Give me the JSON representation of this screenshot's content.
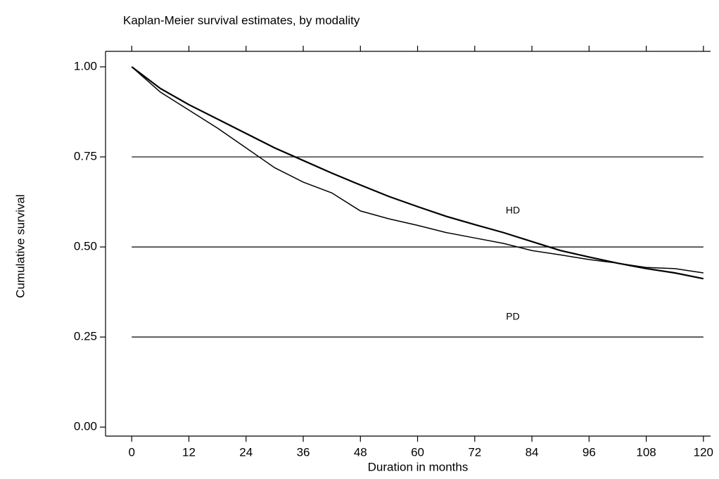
{
  "chart_data": {
    "type": "line",
    "title": "Kaplan-Meier survival estimates, by modality",
    "x_label": "Duration in months",
    "y_label": "Cumulative survival",
    "x": [
      0,
      6,
      12,
      18,
      24,
      30,
      36,
      42,
      48,
      54,
      60,
      66,
      72,
      78,
      84,
      90,
      96,
      102,
      108,
      114,
      120
    ],
    "series": [
      {
        "color": "#000000",
        "values": [
          1.0,
          0.94,
          0.895,
          0.855,
          0.815,
          0.775,
          0.74,
          0.705,
          0.672,
          0.64,
          0.612,
          0.585,
          0.562,
          0.54,
          0.515,
          0.49,
          0.472,
          0.455,
          0.44,
          0.428,
          0.412
        ]
      },
      {
        "color": "#000000",
        "values": [
          1.0,
          0.93,
          0.88,
          0.83,
          0.775,
          0.72,
          0.68,
          0.65,
          0.6,
          0.578,
          0.56,
          0.54,
          0.525,
          0.51,
          0.49,
          0.478,
          0.465,
          0.455,
          0.443,
          0.44,
          0.428
        ]
      }
    ],
    "annotations": [
      {
        "text": "HD",
        "x": 80,
        "y": 0.6
      },
      {
        "text": "PD",
        "x": 80,
        "y": 0.305
      }
    ],
    "xlim": [
      -5.5,
      121.5
    ],
    "ylim": [
      -0.025,
      1.043
    ],
    "xticks": [
      0,
      12,
      24,
      36,
      48,
      60,
      72,
      84,
      96,
      108,
      120
    ],
    "yticks": [
      {
        "value": 0,
        "label": "0.00"
      },
      {
        "value": 0.25,
        "label": "0.25"
      },
      {
        "value": 0.5,
        "label": "0.50"
      },
      {
        "value": 0.75,
        "label": "0.75"
      },
      {
        "value": 1,
        "label": "1.00"
      }
    ],
    "grid": true
  }
}
